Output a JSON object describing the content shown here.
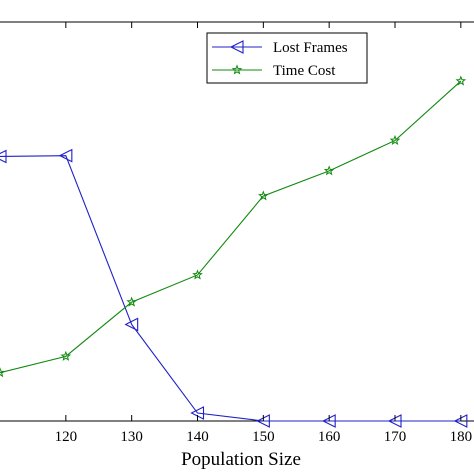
{
  "chart_data": {
    "type": "line",
    "title": "",
    "xlabel": "Population Size",
    "ylabel": "",
    "xlim": [
      110,
      182
    ],
    "ylim": [
      0,
      1
    ],
    "x": [
      110,
      120,
      130,
      140,
      150,
      160,
      170,
      180
    ],
    "x_ticks": [
      120,
      130,
      140,
      150,
      160,
      170,
      180
    ],
    "grid": false,
    "legend_position": "top-right",
    "series": [
      {
        "name": "Lost Frames",
        "color": "#2020c8",
        "marker": "triangle-left",
        "values": [
          0.663,
          0.665,
          0.242,
          0.02,
          0.0,
          0.0,
          0.0,
          0.0
        ]
      },
      {
        "name": "Time Cost",
        "color": "#108a10",
        "marker": "pentagram",
        "values": [
          0.121,
          0.162,
          0.298,
          0.366,
          0.564,
          0.627,
          0.703,
          0.852
        ]
      }
    ]
  }
}
